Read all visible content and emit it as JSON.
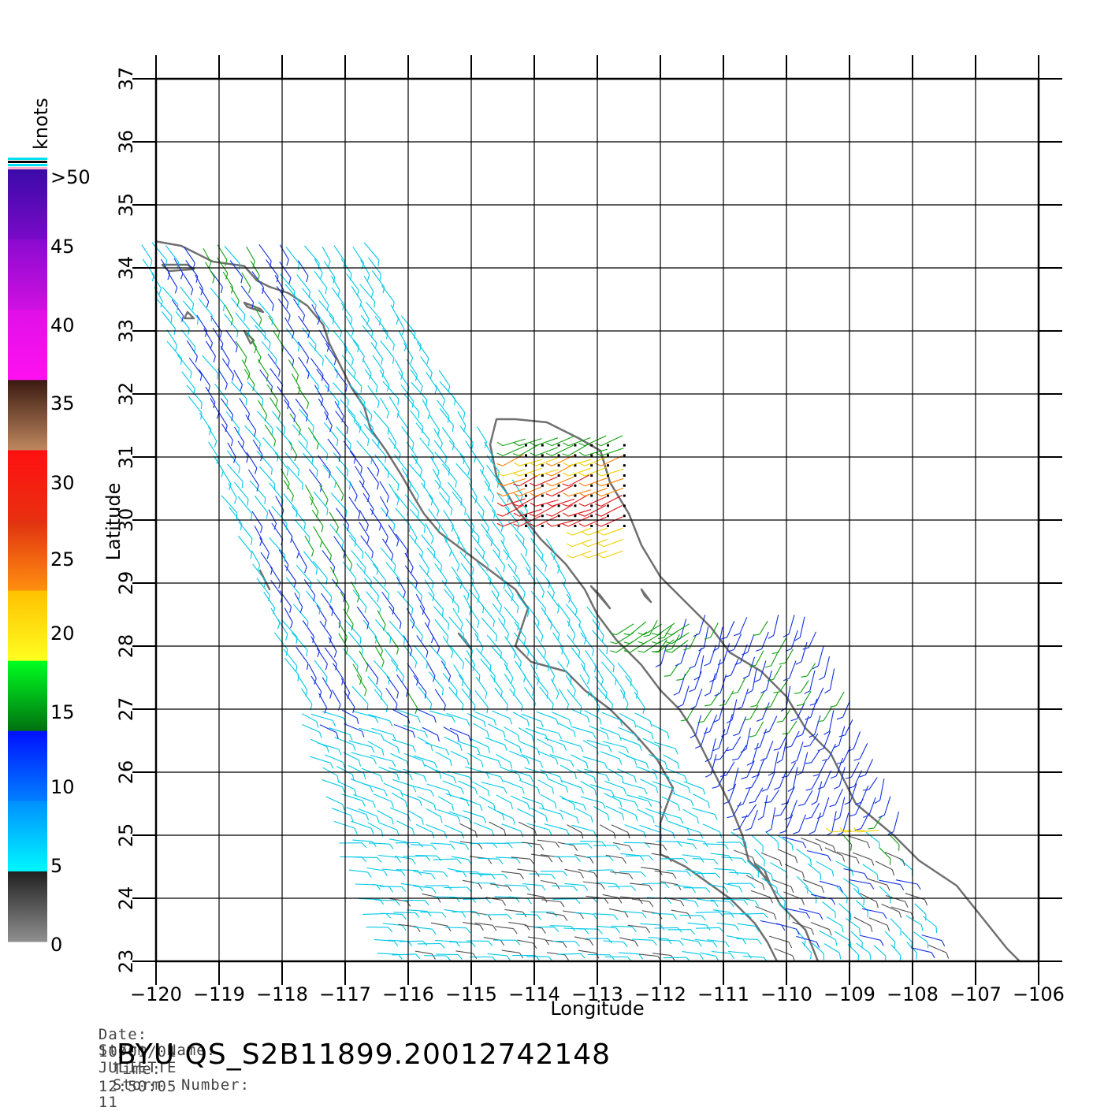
{
  "legend": {
    "unit": "knots",
    "labels": [
      ">50",
      "45",
      "40",
      "35",
      "30",
      "25",
      "20",
      "15",
      "10",
      "5",
      "0"
    ],
    "bands": [
      {
        "from": 50,
        "to": 55,
        "colors": [
          "#3a0aa8",
          "#7a0ac8"
        ]
      },
      {
        "from": 45,
        "to": 50,
        "colors": [
          "#8a0ad0",
          "#d010e0"
        ]
      },
      {
        "from": 40,
        "to": 45,
        "colors": [
          "#e010e8",
          "#ff10f0"
        ]
      },
      {
        "from": 35,
        "to": 40,
        "colors": [
          "#3a1a10",
          "#c08860"
        ]
      },
      {
        "from": 30,
        "to": 35,
        "colors": [
          "#ff1010",
          "#e83010"
        ]
      },
      {
        "from": 25,
        "to": 30,
        "colors": [
          "#e03010",
          "#ff9010"
        ]
      },
      {
        "from": 20,
        "to": 25,
        "colors": [
          "#ffc000",
          "#ffff20"
        ]
      },
      {
        "from": 15,
        "to": 20,
        "colors": [
          "#00ff20",
          "#007010"
        ]
      },
      {
        "from": 10,
        "to": 15,
        "colors": [
          "#0010ff",
          "#0080ff"
        ]
      },
      {
        "from": 5,
        "to": 10,
        "colors": [
          "#0090ff",
          "#00f8ff"
        ]
      },
      {
        "from": 0,
        "to": 5,
        "colors": [
          "#202020",
          "#909090"
        ]
      }
    ]
  },
  "axes": {
    "xlabel": "Longitude",
    "ylabel": "Latitude",
    "xlim": [
      -120,
      -106
    ],
    "ylim": [
      23,
      37
    ],
    "xticks": [
      "−120",
      "−119",
      "−118",
      "−117",
      "−116",
      "−115",
      "−114",
      "−113",
      "−112",
      "−111",
      "−110",
      "−109",
      "−108",
      "−107",
      "−106"
    ],
    "yticks": [
      "23",
      "24",
      "25",
      "26",
      "27",
      "28",
      "29",
      "30",
      "31",
      "32",
      "33",
      "34",
      "35",
      "36",
      "37"
    ]
  },
  "colors": {
    "coast": "#707070",
    "grid": "#000000",
    "wind_speed": {
      "grey": "#505050",
      "cyan": "#00c8e8",
      "blue": "#1030e0",
      "green": "#10a010",
      "yellow": "#f0d000",
      "orange": "#ff8000",
      "red": "#e01010"
    }
  },
  "footer": {
    "date_label": "Date:",
    "date": "10/01/01",
    "time_label": "Time:",
    "time": "12:50:05",
    "storm_name_label": "Storm  Name:",
    "storm_name": "JULIETTE",
    "storm_number_label": "Storm  Number:",
    "storm_number": "11",
    "file_id": "BYU  QS_S2B11899.20012742148"
  }
}
